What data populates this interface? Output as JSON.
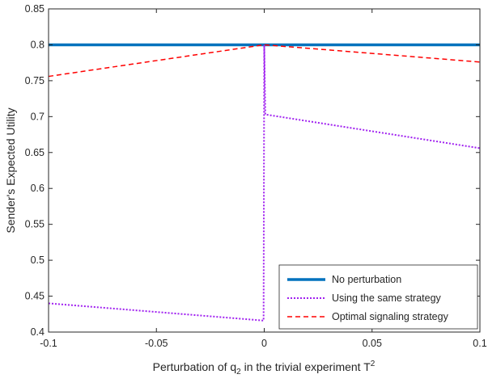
{
  "chart_data": {
    "type": "line",
    "title": "",
    "xlabel": {
      "main": "Perturbation of q",
      "sub": "2",
      "middle": " in the trivial experiment T",
      "sup": "2"
    },
    "ylabel": "Sender's Expected Utility",
    "xlim": [
      -0.1,
      0.1
    ],
    "ylim": [
      0.4,
      0.85
    ],
    "xticks": [
      -0.1,
      -0.05,
      0,
      0.05,
      0.1
    ],
    "xtick_labels": [
      "-0.1",
      "-0.05",
      "0",
      "0.05",
      "0.1"
    ],
    "yticks": [
      0.4,
      0.45,
      0.5,
      0.55,
      0.6,
      0.65,
      0.7,
      0.75,
      0.8,
      0.85
    ],
    "ytick_labels": [
      "0.4",
      "0.45",
      "0.5",
      "0.55",
      "0.6",
      "0.65",
      "0.7",
      "0.75",
      "0.8",
      "0.85"
    ],
    "grid": false,
    "legend_position": "bottom-right",
    "series": [
      {
        "name": "No perturbation",
        "color": "#0072BD",
        "style": "solid",
        "points": [
          [
            -0.1,
            0.8
          ],
          [
            0.1,
            0.8
          ]
        ]
      },
      {
        "name": "Using the same strategy",
        "color": "#A020F0",
        "style": "dotted",
        "points": [
          [
            -0.1,
            0.44
          ],
          [
            -0.0003,
            0.416
          ],
          [
            0,
            0.8
          ],
          [
            0.0005,
            0.703
          ],
          [
            0.1,
            0.656
          ]
        ]
      },
      {
        "name": "Optimal signaling strategy",
        "color": "#FF0000",
        "style": "dashed",
        "points": [
          [
            -0.1,
            0.756
          ],
          [
            0,
            0.8
          ],
          [
            0.1,
            0.776
          ]
        ]
      }
    ]
  }
}
